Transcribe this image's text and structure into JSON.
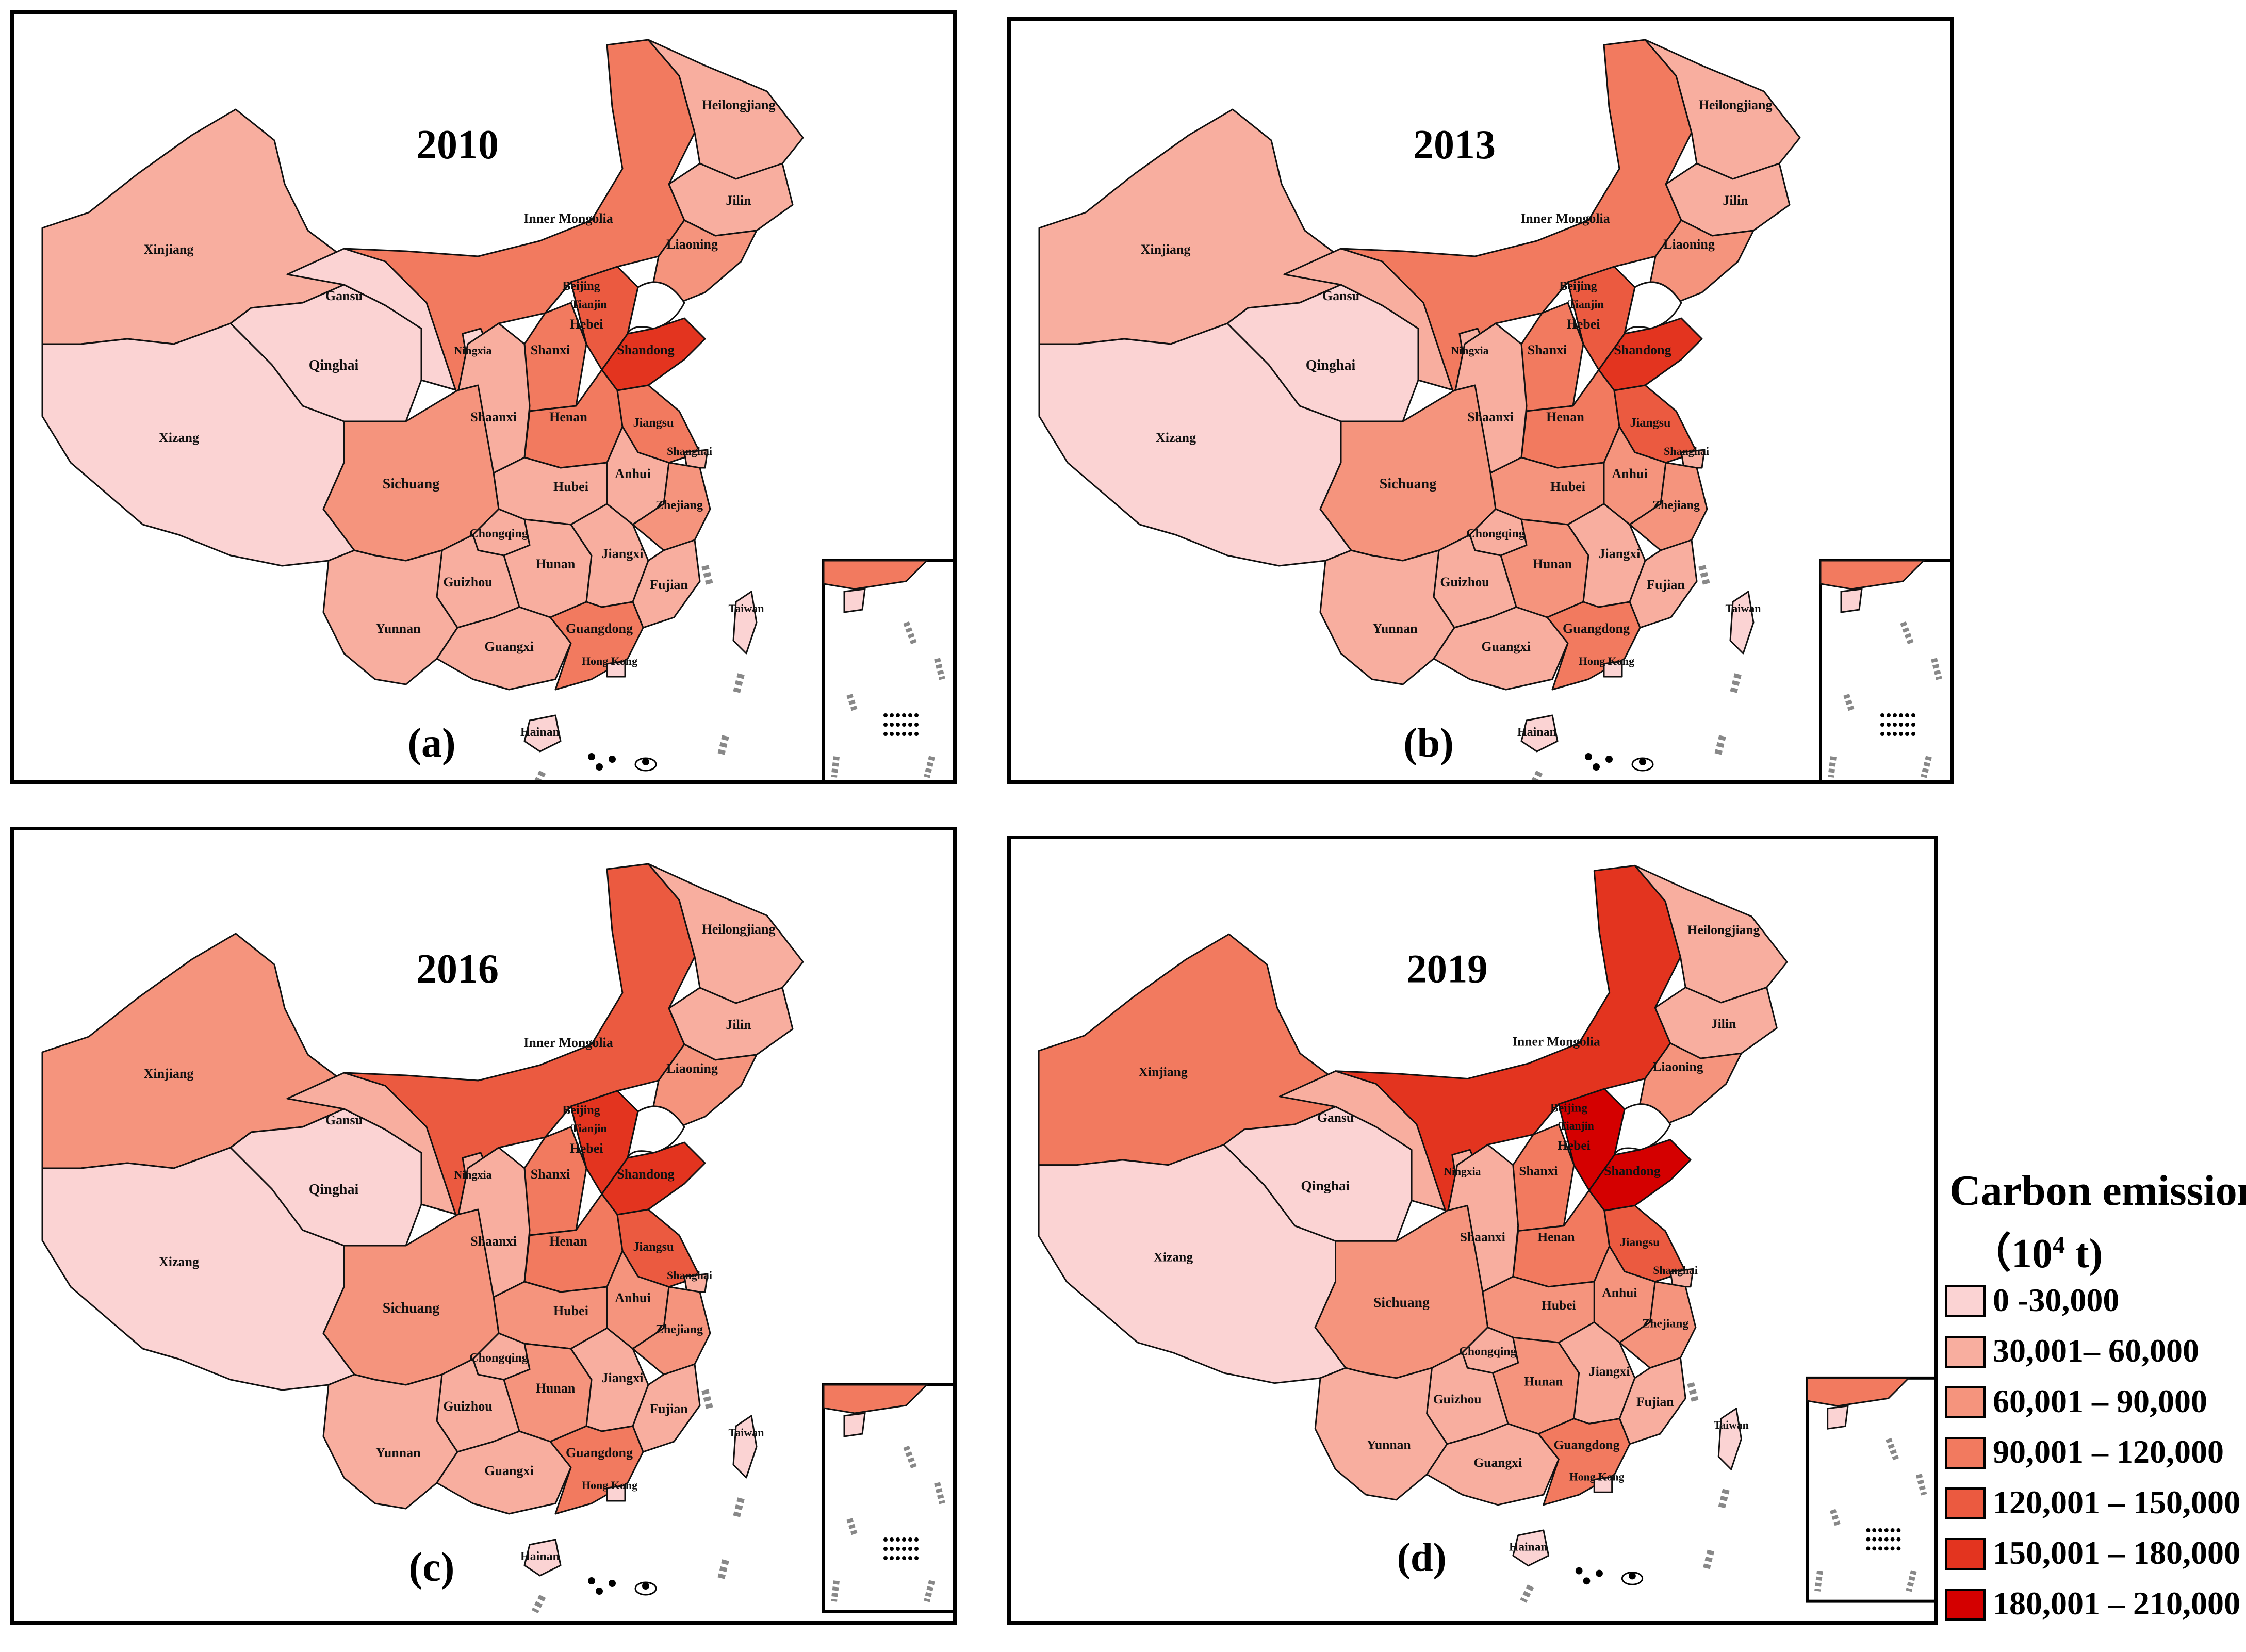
{
  "colors": [
    "#fbd3d3",
    "#f8ae9f",
    "#f5947d",
    "#f27a5f",
    "#eb5a40",
    "#e3341f",
    "#d40000"
  ],
  "provinces": [
    "Xinjiang",
    "Xizang",
    "Qinghai",
    "Gansu",
    "Inner Mongolia",
    "Heilongjiang",
    "Jilin",
    "Liaoning",
    "Beijing",
    "Tianjin",
    "Hebei",
    "Shanxi",
    "Shandong",
    "Ningxia",
    "Shaanxi",
    "Henan",
    "Jiangsu",
    "Shanghai",
    "Anhui",
    "Hubei",
    "Sichuang",
    "Chongqing",
    "Zhejiang",
    "Hunan",
    "Jiangxi",
    "Fujian",
    "Guizhou",
    "Yunnan",
    "Guangxi",
    "Guangdong",
    "Hong Kong",
    "Taiwan",
    "Hainan"
  ],
  "panels": [
    {
      "year": "2010",
      "letter": "(a)",
      "classes": {
        "Xinjiang": 1,
        "Xizang": 0,
        "Qinghai": 0,
        "Gansu": 0,
        "Inner Mongolia": 3,
        "Heilongjiang": 1,
        "Jilin": 1,
        "Liaoning": 2,
        "Beijing": 1,
        "Tianjin": 1,
        "Hebei": 4,
        "Shanxi": 3,
        "Shandong": 5,
        "Ningxia": 0,
        "Shaanxi": 1,
        "Henan": 3,
        "Jiangsu": 3,
        "Shanghai": 1,
        "Anhui": 1,
        "Hubei": 1,
        "Sichuang": 2,
        "Chongqing": 1,
        "Zhejiang": 2,
        "Hunan": 1,
        "Jiangxi": 1,
        "Fujian": 1,
        "Guizhou": 1,
        "Yunnan": 1,
        "Guangxi": 1,
        "Guangdong": 3,
        "Hong Kong": 0,
        "Taiwan": 0,
        "Hainan": 0
      }
    },
    {
      "year": "2013",
      "letter": "(b)",
      "classes": {
        "Xinjiang": 1,
        "Xizang": 0,
        "Qinghai": 0,
        "Gansu": 1,
        "Inner Mongolia": 3,
        "Heilongjiang": 1,
        "Jilin": 1,
        "Liaoning": 2,
        "Beijing": 1,
        "Tianjin": 1,
        "Hebei": 4,
        "Shanxi": 3,
        "Shandong": 5,
        "Ningxia": 1,
        "Shaanxi": 1,
        "Henan": 3,
        "Jiangsu": 4,
        "Shanghai": 1,
        "Anhui": 2,
        "Hubei": 2,
        "Sichuang": 2,
        "Chongqing": 1,
        "Zhejiang": 2,
        "Hunan": 2,
        "Jiangxi": 1,
        "Fujian": 1,
        "Guizhou": 1,
        "Yunnan": 1,
        "Guangxi": 1,
        "Guangdong": 3,
        "Hong Kong": 0,
        "Taiwan": 0,
        "Hainan": 0
      }
    },
    {
      "year": "2016",
      "letter": "(c)",
      "classes": {
        "Xinjiang": 2,
        "Xizang": 0,
        "Qinghai": 0,
        "Gansu": 1,
        "Inner Mongolia": 4,
        "Heilongjiang": 1,
        "Jilin": 1,
        "Liaoning": 2,
        "Beijing": 1,
        "Tianjin": 1,
        "Hebei": 5,
        "Shanxi": 3,
        "Shandong": 5,
        "Ningxia": 1,
        "Shaanxi": 1,
        "Henan": 3,
        "Jiangsu": 4,
        "Shanghai": 1,
        "Anhui": 2,
        "Hubei": 2,
        "Sichuang": 2,
        "Chongqing": 1,
        "Zhejiang": 2,
        "Hunan": 2,
        "Jiangxi": 1,
        "Fujian": 1,
        "Guizhou": 1,
        "Yunnan": 1,
        "Guangxi": 1,
        "Guangdong": 3,
        "Hong Kong": 0,
        "Taiwan": 0,
        "Hainan": 0
      }
    },
    {
      "year": "2019",
      "letter": "(d)",
      "classes": {
        "Xinjiang": 3,
        "Xizang": 0,
        "Qinghai": 0,
        "Gansu": 1,
        "Inner Mongolia": 5,
        "Heilongjiang": 1,
        "Jilin": 1,
        "Liaoning": 2,
        "Beijing": 1,
        "Tianjin": 1,
        "Hebei": 6,
        "Shanxi": 3,
        "Shandong": 6,
        "Ningxia": 1,
        "Shaanxi": 1,
        "Henan": 3,
        "Jiangsu": 4,
        "Shanghai": 1,
        "Anhui": 2,
        "Hubei": 2,
        "Sichuang": 2,
        "Chongqing": 1,
        "Zhejiang": 2,
        "Hunan": 2,
        "Jiangxi": 1,
        "Fujian": 1,
        "Guizhou": 1,
        "Yunnan": 1,
        "Guangxi": 1,
        "Guangdong": 3,
        "Hong Kong": 0,
        "Taiwan": 0,
        "Hainan": 0
      }
    }
  ],
  "legend": {
    "title": "Carbon emission",
    "unit_prefix": "（10",
    "unit_exp": "4",
    "unit_suffix": " t)",
    "items": [
      "0 -30,000",
      "30,001– 60,000",
      "60,001 – 90,000",
      "90,001 – 120,000",
      "120,001 – 150,000",
      "150,001 – 180,000",
      "180,001 – 210,000"
    ]
  }
}
